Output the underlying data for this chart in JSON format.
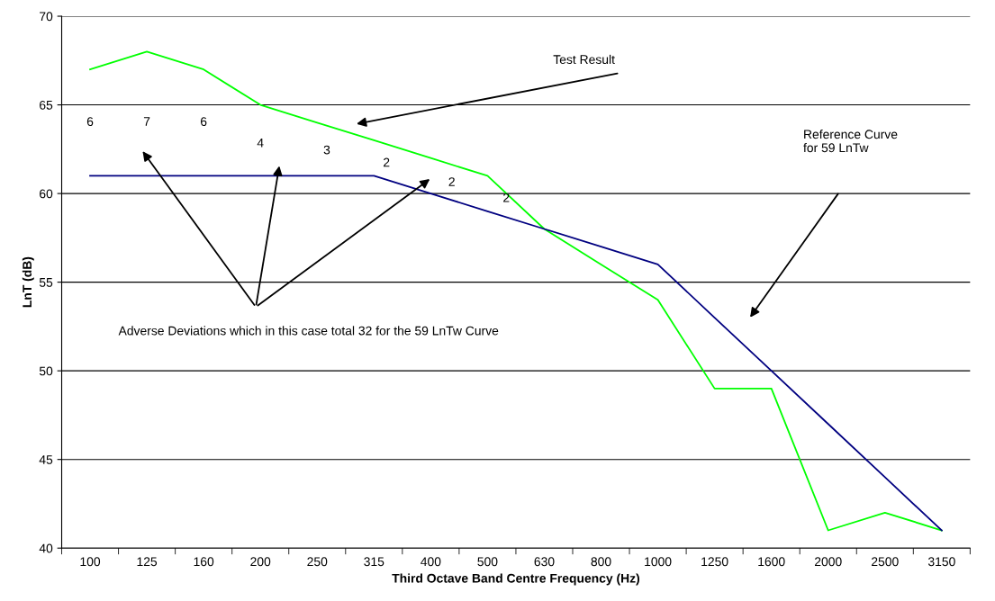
{
  "chart_data": {
    "type": "line",
    "xlabel": "Third Octave Band Centre Frequency (Hz)",
    "ylabel": "LnT (dB)",
    "categories": [
      "100",
      "125",
      "160",
      "200",
      "250",
      "315",
      "400",
      "500",
      "630",
      "800",
      "1000",
      "1250",
      "1600",
      "2000",
      "2500",
      "3150"
    ],
    "series": [
      {
        "color": "#00ff00",
        "values": [
          67,
          68,
          67,
          65,
          64,
          63,
          62,
          61,
          58,
          56,
          54,
          49,
          49,
          41,
          42,
          41
        ]
      },
      {
        "color": "#000080",
        "values": [
          61,
          61,
          61,
          61,
          61,
          61,
          60,
          59,
          58,
          57,
          56,
          53,
          50,
          47,
          44,
          41
        ]
      }
    ],
    "ylim": [
      40,
      70
    ],
    "yticks": [
      40,
      45,
      50,
      55,
      60,
      65,
      70
    ],
    "grid": "y",
    "legend": false,
    "marker": "none",
    "line_style": "solid",
    "annotations": [
      "Test Result",
      "Reference Curve\nfor 59 LnTw",
      "Adverse Deviations which in this case total 32 for the 59 LnTw Curve",
      "6",
      "7",
      "6",
      "4",
      "3",
      "2",
      "2",
      "2"
    ]
  }
}
